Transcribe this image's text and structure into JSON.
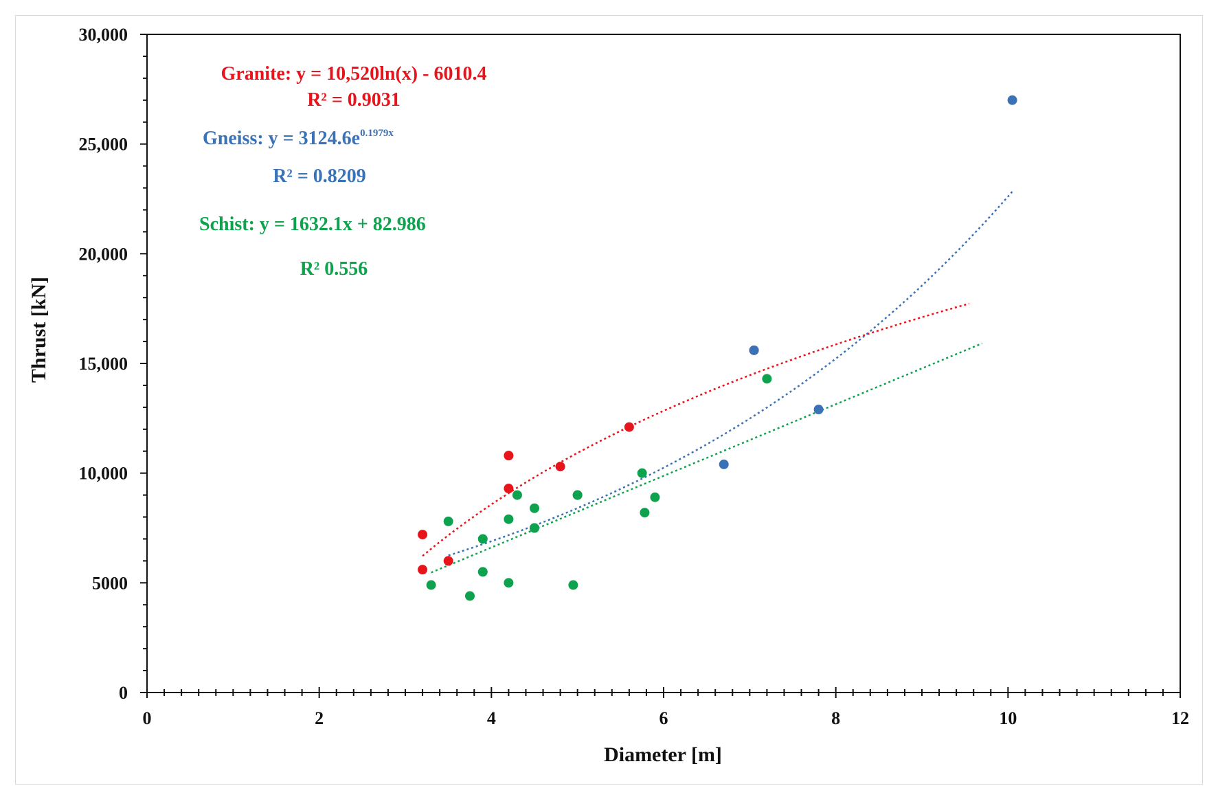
{
  "chart_data": {
    "type": "scatter",
    "xlabel": "Diameter [m]",
    "ylabel": "Thrust [kN]",
    "xlim": [
      0,
      12
    ],
    "ylim": [
      0,
      30000
    ],
    "x_ticks": [
      0,
      2,
      4,
      6,
      8,
      10,
      12
    ],
    "x_tick_labels": [
      "0",
      "2",
      "4",
      "6",
      "8",
      "10",
      "12"
    ],
    "y_ticks": [
      0,
      5000,
      10000,
      15000,
      20000,
      25000,
      30000
    ],
    "y_tick_labels": [
      "0",
      "5000",
      "10,000",
      "15,000",
      "20,000",
      "25,000",
      "30,000"
    ],
    "series": [
      {
        "name": "Granite",
        "color": "#e8141b",
        "points": [
          [
            3.2,
            7200
          ],
          [
            3.2,
            5600
          ],
          [
            3.5,
            6000
          ],
          [
            4.2,
            10800
          ],
          [
            4.2,
            9300
          ],
          [
            4.8,
            10300
          ],
          [
            5.0,
            9000
          ],
          [
            5.6,
            12100
          ],
          [
            7.05,
            15600
          ]
        ],
        "trend": {
          "kind": "log",
          "a": 10520,
          "b": -6010.4,
          "x_start": 3.2,
          "x_end": 9.55
        },
        "equation": "Granite: y = 10,520ln(x) - 6010.4",
        "r2": "R² = 0.9031"
      },
      {
        "name": "Gneiss",
        "color": "#3a72b8",
        "points": [
          [
            4.5,
            7500
          ],
          [
            6.7,
            10400
          ],
          [
            7.05,
            15600
          ],
          [
            7.8,
            12900
          ],
          [
            10.05,
            27000
          ]
        ],
        "trend": {
          "kind": "exp",
          "a": 3124.6,
          "b": 0.1979,
          "x_start": 3.5,
          "x_end": 10.05
        },
        "equation_prefix": "Gneiss: y = 3124.6e",
        "equation_exponent": "0.1979x",
        "r2": "R² = 0.8209"
      },
      {
        "name": "Schist",
        "color": "#0fa24e",
        "points": [
          [
            3.3,
            4900
          ],
          [
            3.5,
            7800
          ],
          [
            3.75,
            4400
          ],
          [
            3.9,
            7000
          ],
          [
            3.9,
            5500
          ],
          [
            4.2,
            7900
          ],
          [
            4.2,
            5000
          ],
          [
            4.3,
            9000
          ],
          [
            4.5,
            8400
          ],
          [
            4.5,
            7500
          ],
          [
            4.95,
            4900
          ],
          [
            5.0,
            9000
          ],
          [
            5.75,
            10000
          ],
          [
            5.78,
            8200
          ],
          [
            5.9,
            8900
          ],
          [
            7.2,
            14300
          ]
        ],
        "trend": {
          "kind": "linear",
          "a": 1632.1,
          "b": 82.986,
          "x_start": 3.3,
          "x_end": 9.7
        },
        "equation": "Schist: y = 1632.1x + 82.986",
        "r2": "R²    0.556"
      }
    ]
  }
}
